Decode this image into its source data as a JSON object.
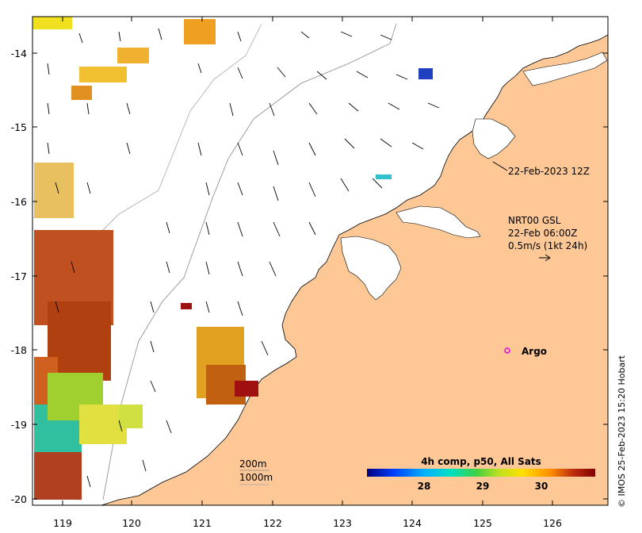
{
  "map": {
    "x_ticks": [
      "119",
      "120",
      "121",
      "122",
      "123",
      "124",
      "125",
      "126"
    ],
    "y_ticks": [
      "-14",
      "-15",
      "-16",
      "-17",
      "-18",
      "-19",
      "-20"
    ],
    "land_color": "#fdc896",
    "ocean_color": "#ffffff"
  },
  "annotations": {
    "track_time": "22-Feb-2023 12Z",
    "current_line1": "NRT00 GSL",
    "current_line2": "22-Feb 06:00Z",
    "current_line3": "0.5m/s (1kt 24h)",
    "argo_label": "Argo",
    "isobath_200": "200m",
    "isobath_1000": "1000m"
  },
  "colorbar": {
    "title": "4h comp, p50, All Sats",
    "ticks": [
      "28",
      "29",
      "30"
    ],
    "colors": [
      "#000080",
      "#0040ff",
      "#00b0ff",
      "#00e0c0",
      "#40d040",
      "#c0e020",
      "#ffe000",
      "#ff9000",
      "#c03010",
      "#800000"
    ]
  },
  "credit": "© IMOS 25-Feb-2023 15:20 Hobart"
}
